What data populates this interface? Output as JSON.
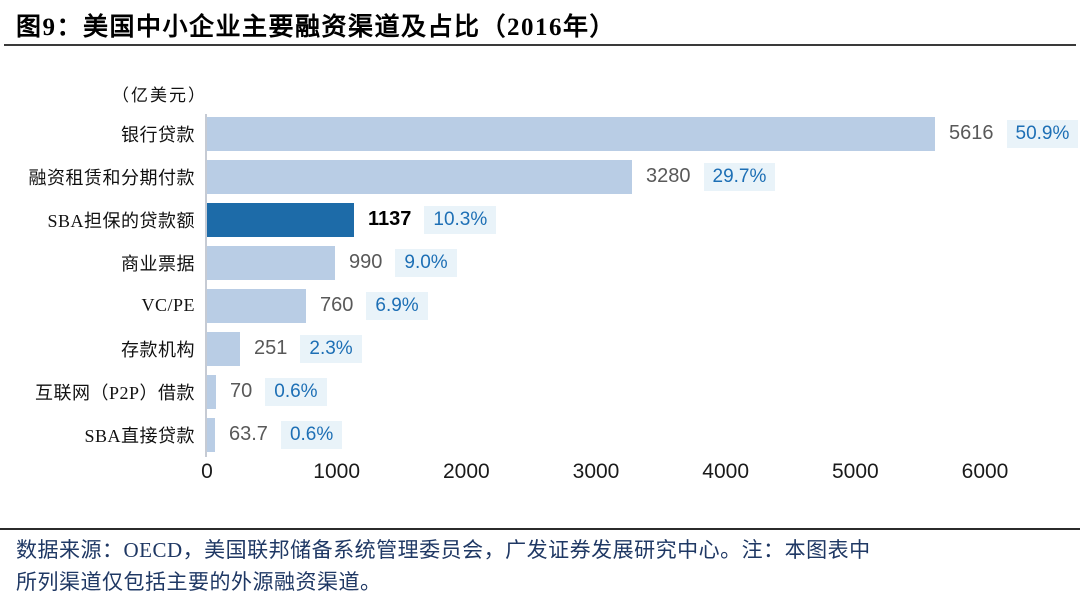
{
  "title": "图9：美国中小企业主要融资渠道及占比（2016年）",
  "unit_label": "（亿美元）",
  "source_note": {
    "line1": "数据来源：OECD，美国联邦储备系统管理委员会，广发证券发展研究中心。注：本图表中",
    "line2": "所列渠道仅包括主要的外源融资渠道。"
  },
  "chart_data": {
    "type": "bar",
    "orientation": "horizontal",
    "title": "美国中小企业主要融资渠道及占比（2016年）",
    "unit": "亿美元",
    "xlabel": "",
    "ylabel": "",
    "xlim": [
      0,
      6000
    ],
    "x_ticks": [
      0,
      1000,
      2000,
      3000,
      4000,
      5000,
      6000
    ],
    "grid": false,
    "legend": false,
    "categories": [
      "银行贷款",
      "融资租赁和分期付款",
      "SBA担保的贷款额",
      "商业票据",
      "VC/PE",
      "存款机构",
      "互联网（P2P）借款",
      "SBA直接贷款"
    ],
    "values": [
      5616,
      3280,
      1137,
      990,
      760,
      251,
      70,
      63.7
    ],
    "percent_labels": [
      "50.9%",
      "29.7%",
      "10.3%",
      "9.0%",
      "6.9%",
      "2.3%",
      "0.6%",
      "0.6%"
    ],
    "highlight_index": 2,
    "rows": [
      {
        "label": "银行贷款",
        "value": 5616,
        "value_label": "5616",
        "pct": "50.9%",
        "highlight": false
      },
      {
        "label": "融资租赁和分期付款",
        "value": 3280,
        "value_label": "3280",
        "pct": "29.7%",
        "highlight": false
      },
      {
        "label": "SBA担保的贷款额",
        "value": 1137,
        "value_label": "1137",
        "pct": "10.3%",
        "highlight": true
      },
      {
        "label": "商业票据",
        "value": 990,
        "value_label": "990",
        "pct": "9.0%",
        "highlight": false
      },
      {
        "label": "VC/PE",
        "value": 760,
        "value_label": "760",
        "pct": "6.9%",
        "highlight": false
      },
      {
        "label": "存款机构",
        "value": 251,
        "value_label": "251",
        "pct": "2.3%",
        "highlight": false
      },
      {
        "label": "互联网（P2P）借款",
        "value": 70,
        "value_label": "70",
        "pct": "0.6%",
        "highlight": false
      },
      {
        "label": "SBA直接贷款",
        "value": 63.7,
        "value_label": "63.7",
        "pct": "0.6%",
        "highlight": false
      }
    ],
    "colors": {
      "bar_default": "#b9cde5",
      "bar_highlight": "#1d6ba8",
      "badge_background": "#e9f3f9",
      "badge_text": "#1d6fb5",
      "value_text": "#595959",
      "highlight_value_text": "#000000",
      "source_text": "#1f3864"
    }
  }
}
